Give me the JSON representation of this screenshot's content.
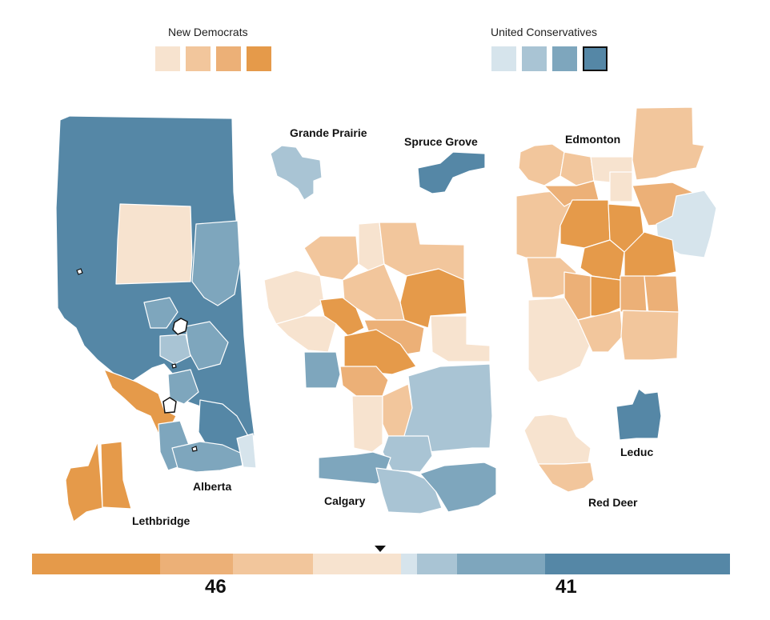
{
  "legend": {
    "ndp_title": "New Democrats",
    "ucp_title": "United Conservatives",
    "ndp_colors": [
      "#f7e3cf",
      "#f2c69c",
      "#ecb077",
      "#e59a4a"
    ],
    "ucp_colors": [
      "#d6e4ec",
      "#a9c4d4",
      "#7ea6bd",
      "#5587a6"
    ],
    "selected_ucp_swatch": 3
  },
  "map_labels": {
    "grande_prairie": "Grande Prairie",
    "spruce_grove": "Spruce Grove",
    "edmonton": "Edmonton",
    "alberta": "Alberta",
    "calgary": "Calgary",
    "leduc": "Leduc",
    "red_deer": "Red Deer",
    "lethbridge": "Lethbridge"
  },
  "seat_bar": {
    "segments": [
      {
        "party": "New Democrats",
        "shade": 4,
        "seats": 16,
        "color": "#e59a4a"
      },
      {
        "party": "New Democrats",
        "shade": 3,
        "seats": 9,
        "color": "#ecb077"
      },
      {
        "party": "New Democrats",
        "shade": 2,
        "seats": 10,
        "color": "#f2c69c"
      },
      {
        "party": "New Democrats",
        "shade": 1,
        "seats": 11,
        "color": "#f7e3cf"
      },
      {
        "party": "United Conservatives",
        "shade": 1,
        "seats": 2,
        "color": "#d6e4ec"
      },
      {
        "party": "United Conservatives",
        "shade": 2,
        "seats": 5,
        "color": "#a9c4d4"
      },
      {
        "party": "United Conservatives",
        "shade": 3,
        "seats": 11,
        "color": "#7ea6bd"
      },
      {
        "party": "United Conservatives",
        "shade": 4,
        "seats": 23,
        "color": "#5587a6"
      }
    ],
    "ndp_seats": "46",
    "ucp_seats": "41"
  }
}
